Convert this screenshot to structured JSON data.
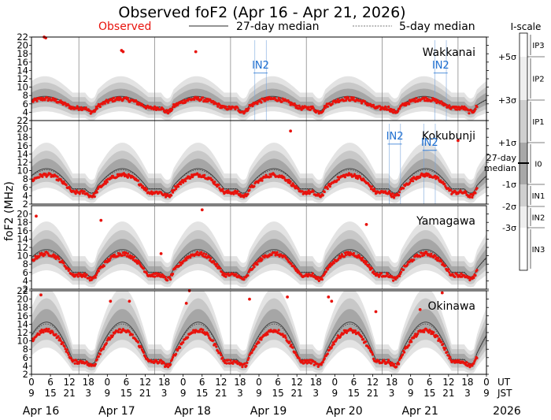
{
  "chart_data": {
    "type": "scatter",
    "title": "Observed foF2 (Apr 16 - Apr 21, 2026)",
    "legend": {
      "observed": "Observed",
      "median27": "27-day median",
      "median5": "5-day median"
    },
    "colors": {
      "observed": "#e8120c",
      "label_in": "#1f6fd0",
      "band_outer": "#e3e3e3",
      "band_mid": "#c8c8c8",
      "band_inner": "#a6a6a6"
    },
    "ylabel": "foF2 (MHz)",
    "x_range_hours_ut": [
      0,
      144
    ],
    "x_tick_labels_ut": [
      "0",
      "3",
      "9",
      "15",
      "21",
      "3",
      "9",
      "15",
      "21",
      "3",
      "9",
      "15",
      "21",
      "3",
      "9",
      "15",
      "21",
      "3",
      "9",
      "15",
      "21",
      "3",
      "9",
      "15",
      "21",
      "3",
      "9"
    ],
    "ut_label": "UT",
    "jst_label": "JST",
    "ut_ticks": [
      "0",
      "6",
      "12",
      "18"
    ],
    "jst_ticks": [
      "9",
      "15",
      "21",
      "3"
    ],
    "days": [
      "Apr 16",
      "Apr 17",
      "Apr 18",
      "Apr 19",
      "Apr 20",
      "Apr 21"
    ],
    "year": "2026",
    "panels": [
      {
        "station": "Wakkanai",
        "ylim": [
          2,
          22
        ],
        "yticks": [
          2,
          4,
          6,
          8,
          10,
          12,
          14,
          16,
          18,
          20,
          22
        ],
        "median_day": 7.8,
        "median_night": 5.2,
        "peak_hour_jst": 13,
        "observed_day": 7.2,
        "observed_night": 5.0,
        "outliers": [
          [
            4,
            22
          ],
          [
            4.5,
            21.8
          ],
          [
            29,
            18.5
          ],
          [
            28.5,
            18.8
          ],
          [
            52,
            18.5
          ]
        ],
        "in_labels": [
          {
            "text": "IN2",
            "hour": 72.5,
            "y": 14.5
          },
          {
            "text": "IN2",
            "hour": 129.5,
            "y": 14.5
          }
        ]
      },
      {
        "station": "Kokubunji",
        "ylim": [
          2,
          22
        ],
        "yticks": [
          2,
          4,
          6,
          8,
          10,
          12,
          14,
          16,
          18,
          20,
          22
        ],
        "median_day": 10.5,
        "median_night": 5.6,
        "peak_hour_jst": 14,
        "observed_day": 9.0,
        "observed_night": 4.8,
        "outliers": [
          [
            82,
            19.5
          ],
          [
            135,
            17.2
          ]
        ],
        "in_labels": [
          {
            "text": "IN2",
            "hour": 115,
            "y": 17.5
          },
          {
            "text": "IN2",
            "hour": 126,
            "y": 16.0
          }
        ]
      },
      {
        "station": "Yamagawa",
        "ylim": [
          2,
          22
        ],
        "yticks": [
          2,
          4,
          6,
          8,
          10,
          12,
          14,
          16,
          18,
          20
        ],
        "median_day": 11.5,
        "median_night": 6.0,
        "peak_hour_jst": 14,
        "observed_day": 10.5,
        "observed_night": 5.4,
        "outliers": [
          [
            1.5,
            19.5
          ],
          [
            22,
            18.5
          ],
          [
            41,
            10.5
          ],
          [
            54,
            21
          ],
          [
            106,
            17.5
          ]
        ],
        "in_labels": []
      },
      {
        "station": "Okinawa",
        "ylim": [
          2,
          22
        ],
        "yticks": [
          2,
          4,
          6,
          8,
          10,
          12,
          14,
          16,
          18,
          20,
          22
        ],
        "median_day": 14.5,
        "median_night": 5.5,
        "peak_hour_jst": 14,
        "observed_day": 12.5,
        "observed_night": 5.0,
        "outliers": [
          [
            3,
            21
          ],
          [
            25,
            19.5
          ],
          [
            31,
            19.5
          ],
          [
            49,
            19
          ],
          [
            50,
            22
          ],
          [
            69,
            20
          ],
          [
            81,
            20.5
          ],
          [
            94,
            20.5
          ],
          [
            95,
            19.5
          ],
          [
            109,
            17
          ],
          [
            123,
            17.5
          ],
          [
            130,
            21.5
          ]
        ],
        "in_labels": []
      }
    ],
    "iscale": {
      "title": "I-scale",
      "levels": [
        "+5σ",
        "+3σ",
        "+1σ",
        "27-day median",
        "-1σ",
        "-2σ",
        "-3σ"
      ],
      "classes": [
        "IP3",
        "IP2",
        "IP1",
        "I0",
        "IN1",
        "IN2",
        "IN3"
      ]
    }
  }
}
